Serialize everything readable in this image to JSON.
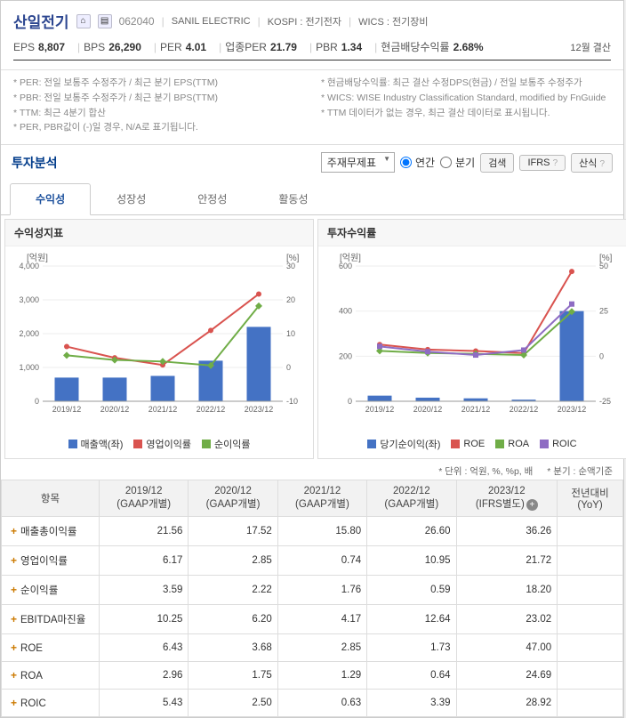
{
  "header": {
    "company": "산일전기",
    "code": "062040",
    "english": "SANIL ELECTRIC",
    "market": "KOSPI : 전기전자",
    "wics": "WICS : 전기장비"
  },
  "metrics": {
    "eps_label": "EPS",
    "eps": "8,807",
    "bps_label": "BPS",
    "bps": "26,290",
    "per_label": "PER",
    "per": "4.01",
    "sector_per_label": "업종PER",
    "sector_per": "21.79",
    "pbr_label": "PBR",
    "pbr": "1.34",
    "div_label": "현금배당수익률",
    "div": "2.68%",
    "settlement": "12월 결산"
  },
  "notes": {
    "col1_line1": "* PER: 전일 보통주 수정주가 / 최근 분기 EPS(TTM)",
    "col1_line2": "* PBR: 전일 보통주 수정주가 / 최근 분기 BPS(TTM)",
    "col1_line3": "* TTM: 최근 4분기 합산",
    "col1_line4": "* PER, PBR값이 (-)일 경우, N/A로 표기됩니다.",
    "col2_line1": "* 현금배당수익률: 최근 결산 수정DPS(현금) / 전일 보통주 수정주가",
    "col2_line2": "* WICS: WISE Industry Classification Standard, modified by FnGuide",
    "col2_line3": "* TTM 데이터가 없는 경우, 최근 결산 데이터로 표시됩니다."
  },
  "section": {
    "title": "투자분석",
    "select_value": "주재무제표",
    "radio1": "연간",
    "radio2": "분기",
    "btn_search": "검색",
    "btn_ifrs": "IFRS",
    "btn_calc": "산식"
  },
  "tabs": {
    "t1": "수익성",
    "t2": "성장성",
    "t3": "안정성",
    "t4": "활동성"
  },
  "chart1": {
    "title": "수익성지표",
    "type": "combo",
    "y1_label": "[억원]",
    "y2_label": "[%]",
    "y1_ticks": [
      0,
      1000,
      2000,
      3000,
      4000
    ],
    "y1_max": 4000,
    "y2_ticks": [
      -10,
      0,
      10,
      20,
      30
    ],
    "y2_min": -10,
    "y2_max": 30,
    "categories": [
      "2019/12",
      "2020/12",
      "2021/12",
      "2022/12",
      "2023/12"
    ],
    "bars": {
      "label": "매출액(좌)",
      "color": "#4472c4",
      "values": [
        700,
        700,
        750,
        1200,
        2200
      ]
    },
    "line1": {
      "label": "영업이익률",
      "color": "#d9534f",
      "values": [
        6.17,
        2.85,
        0.74,
        10.95,
        21.72
      ]
    },
    "line2": {
      "label": "순이익률",
      "color": "#70ad47",
      "values": [
        3.59,
        2.22,
        1.76,
        0.59,
        18.2
      ]
    }
  },
  "chart2": {
    "title": "투자수익률",
    "type": "combo",
    "y1_label": "[억원]",
    "y2_label": "[%]",
    "y1_ticks": [
      0,
      200,
      400,
      600
    ],
    "y1_max": 600,
    "y2_ticks": [
      -25,
      0,
      25,
      50
    ],
    "y2_min": -25,
    "y2_max": 50,
    "categories": [
      "2019/12",
      "2020/12",
      "2021/12",
      "2022/12",
      "2023/12"
    ],
    "bars": {
      "label": "당기순이익(좌)",
      "color": "#4472c4",
      "values": [
        25,
        16,
        13,
        7,
        400
      ]
    },
    "line_roe": {
      "label": "ROE",
      "color": "#d9534f",
      "values": [
        6.43,
        3.68,
        2.85,
        1.73,
        47.0
      ]
    },
    "line_roa": {
      "label": "ROA",
      "color": "#70ad47",
      "values": [
        2.96,
        1.75,
        1.29,
        0.64,
        24.69
      ]
    },
    "line_roic": {
      "label": "ROIC",
      "color": "#8e6cc3",
      "values": [
        5.43,
        2.5,
        0.63,
        3.39,
        28.92
      ]
    }
  },
  "units": {
    "u1": "* 단위 : 억원, %, %p, 배",
    "u2": "* 분기 : 순액기준"
  },
  "table": {
    "col_label": "항목",
    "headers": [
      "2019/12\n(GAAP개별)",
      "2020/12\n(GAAP개별)",
      "2021/12\n(GAAP개별)",
      "2022/12\n(GAAP개별)",
      "2023/12\n(IFRS별도)",
      "전년대비\n(YoY)"
    ],
    "rows": [
      {
        "label": "매출총이익률",
        "vals": [
          "21.56",
          "17.52",
          "15.80",
          "26.60",
          "36.26",
          ""
        ]
      },
      {
        "label": "영업이익률",
        "vals": [
          "6.17",
          "2.85",
          "0.74",
          "10.95",
          "21.72",
          ""
        ]
      },
      {
        "label": "순이익률",
        "vals": [
          "3.59",
          "2.22",
          "1.76",
          "0.59",
          "18.20",
          ""
        ]
      },
      {
        "label": "EBITDA마진율",
        "vals": [
          "10.25",
          "6.20",
          "4.17",
          "12.64",
          "23.02",
          ""
        ]
      },
      {
        "label": "ROE",
        "vals": [
          "6.43",
          "3.68",
          "2.85",
          "1.73",
          "47.00",
          ""
        ]
      },
      {
        "label": "ROA",
        "vals": [
          "2.96",
          "1.75",
          "1.29",
          "0.64",
          "24.69",
          ""
        ]
      },
      {
        "label": "ROIC",
        "vals": [
          "5.43",
          "2.50",
          "0.63",
          "3.39",
          "28.92",
          ""
        ]
      }
    ]
  }
}
